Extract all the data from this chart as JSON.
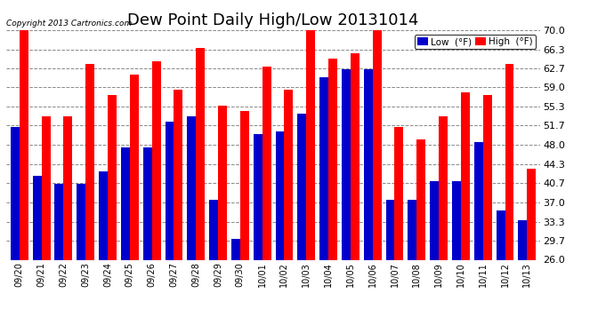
{
  "title": "Dew Point Daily High/Low 20131014",
  "copyright": "Copyright 2013 Cartronics.com",
  "dates": [
    "09/20",
    "09/21",
    "09/22",
    "09/23",
    "09/24",
    "09/25",
    "09/26",
    "09/27",
    "09/28",
    "09/29",
    "09/30",
    "10/01",
    "10/02",
    "10/03",
    "10/04",
    "10/05",
    "10/06",
    "10/07",
    "10/08",
    "10/09",
    "10/10",
    "10/11",
    "10/12",
    "10/13"
  ],
  "high": [
    70.0,
    53.5,
    53.5,
    63.5,
    57.5,
    61.5,
    64.0,
    58.5,
    66.5,
    55.5,
    54.5,
    63.0,
    58.5,
    70.5,
    64.5,
    65.5,
    71.0,
    51.5,
    49.0,
    53.5,
    58.0,
    57.5,
    63.5,
    43.5
  ],
  "low": [
    51.5,
    42.0,
    40.5,
    40.5,
    43.0,
    47.5,
    47.5,
    52.5,
    53.5,
    37.5,
    30.0,
    50.0,
    50.5,
    54.0,
    61.0,
    62.5,
    62.5,
    37.5,
    37.5,
    41.0,
    41.0,
    48.5,
    35.5,
    33.5
  ],
  "ylim": [
    26.0,
    70.0
  ],
  "yticks": [
    26.0,
    29.7,
    33.3,
    37.0,
    40.7,
    44.3,
    48.0,
    51.7,
    55.3,
    59.0,
    62.7,
    66.3,
    70.0
  ],
  "high_color": "#ff0000",
  "low_color": "#0000cc",
  "bg_color": "#ffffff",
  "plot_bg": "#ffffff",
  "grid_color": "#888888",
  "title_fontsize": 13,
  "bar_width": 0.4,
  "legend_low_label": "Low  (°F)",
  "legend_high_label": "High  (°F)"
}
